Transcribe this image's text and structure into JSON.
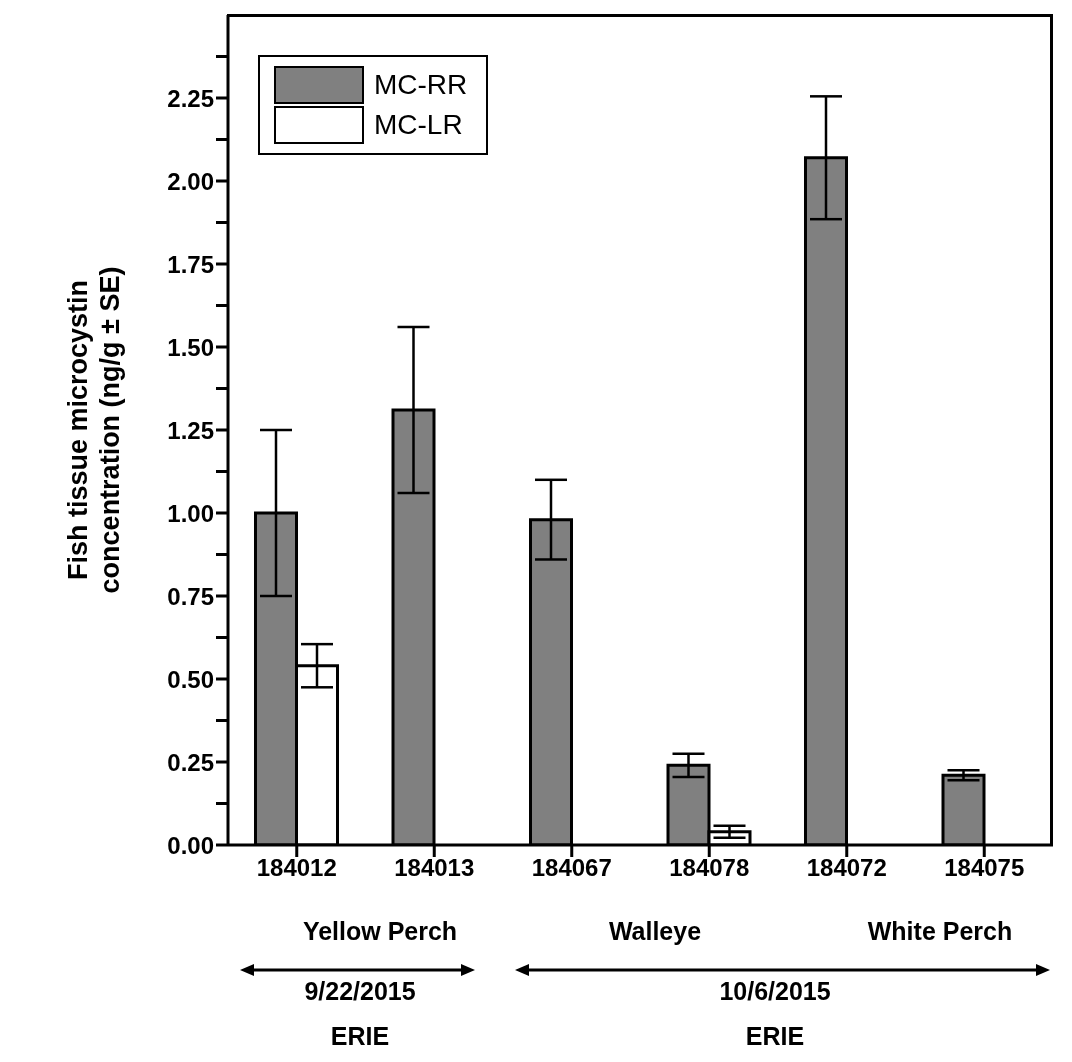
{
  "chart_data": {
    "type": "bar",
    "categories": [
      "184012",
      "184013",
      "184067",
      "184078",
      "184072",
      "184075"
    ],
    "ylabel": "Fish tissue microcystin\nconcentration (ng/g ± SE)",
    "series": [
      {
        "name": "MC-RR",
        "color": "#808080",
        "values": [
          1.0,
          1.31,
          0.98,
          0.24,
          2.07,
          0.21
        ],
        "errors": [
          0.25,
          0.25,
          0.12,
          0.035,
          0.185,
          0.015
        ]
      },
      {
        "name": "MC-LR",
        "color": "#ffffff",
        "values": [
          0.54,
          null,
          null,
          0.04,
          null,
          null
        ],
        "errors": [
          0.065,
          null,
          null,
          0.018,
          null,
          null
        ]
      }
    ],
    "ylim": [
      0,
      2.5
    ],
    "yticks": [
      {
        "value": 0,
        "label": "0.00"
      },
      {
        "value": 0.125,
        "label": null
      },
      {
        "value": 0.25,
        "label": "0.25"
      },
      {
        "value": 0.375,
        "label": null
      },
      {
        "value": 0.5,
        "label": "0.50"
      },
      {
        "value": 0.625,
        "label": null
      },
      {
        "value": 0.75,
        "label": "0.75"
      },
      {
        "value": 0.875,
        "label": null
      },
      {
        "value": 1,
        "label": "1.00"
      },
      {
        "value": 1.125,
        "label": null
      },
      {
        "value": 1.25,
        "label": "1.25"
      },
      {
        "value": 1.375,
        "label": null
      },
      {
        "value": 1.5,
        "label": "1.50"
      },
      {
        "value": 1.625,
        "label": null
      },
      {
        "value": 1.75,
        "label": "1.75"
      },
      {
        "value": 1.875,
        "label": null
      },
      {
        "value": 2,
        "label": "2.00"
      },
      {
        "value": 2.125,
        "label": null
      },
      {
        "value": 2.25,
        "label": "2.25"
      },
      {
        "value": 2.375,
        "label": null
      }
    ],
    "legend": "top left",
    "grid": false,
    "annotations": [
      "Yellow Perch",
      "Walleye",
      "White Perch",
      "9/22/2015",
      "10/6/2015",
      "ERIE",
      "ERIE"
    ]
  }
}
